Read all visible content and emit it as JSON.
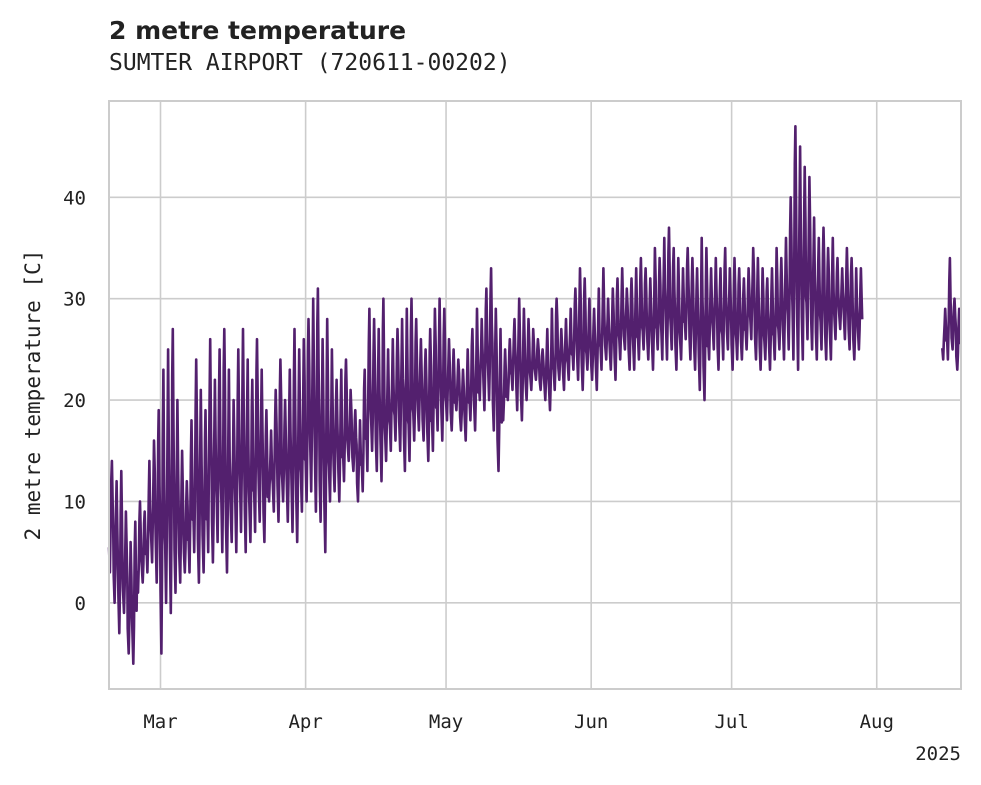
{
  "chart_data": {
    "type": "line",
    "title": "2 metre temperature",
    "subtitle": "SUMTER AIRPORT (720611-00202)",
    "ylabel": "2 metre temperature [C]",
    "xlabel": "",
    "x_tick_labels": [
      "Mar",
      "Apr",
      "May",
      "Jun",
      "Jul",
      "Aug"
    ],
    "x_year_label": "2025",
    "y_ticks": [
      0,
      10,
      20,
      30,
      40
    ],
    "xlim": [
      "2025-02-18",
      "2025-08-19"
    ],
    "ylim": [
      -8.5,
      49.5
    ],
    "grid": true,
    "legend": "none",
    "line_color": "#53206e",
    "series": [
      {
        "segments": [
          {
            "start": "2025-02-18",
            "end": "2025-07-27",
            "step_days": 1,
            "tmin": [
              3,
              0,
              -3,
              -1,
              -5,
              -6,
              1,
              2,
              3,
              4,
              2,
              -5,
              0,
              -1,
              1,
              2,
              3,
              3,
              5,
              2,
              3,
              5,
              4,
              6,
              5,
              3,
              6,
              5,
              7,
              5,
              6,
              7,
              8,
              6,
              10,
              9,
              8,
              10,
              8,
              7,
              6,
              9,
              10,
              11,
              9,
              8,
              5,
              10,
              11,
              10,
              12,
              14,
              13,
              10,
              11,
              13,
              15,
              13,
              12,
              14,
              15,
              16,
              15,
              13,
              14,
              16,
              17,
              16,
              14,
              15,
              17,
              16,
              18,
              17,
              19,
              17,
              16,
              18,
              17,
              20,
              19,
              20,
              17,
              13,
              18,
              20,
              21,
              19,
              18,
              20,
              21,
              22,
              21,
              20,
              19,
              21,
              22,
              21,
              22,
              23,
              22,
              21,
              23,
              22,
              21,
              23,
              24,
              23,
              22,
              24,
              25,
              23,
              23,
              24,
              25,
              24,
              23,
              25,
              24,
              24,
              25,
              23,
              24,
              26,
              24,
              23,
              21,
              20,
              24,
              25,
              23,
              24,
              25,
              23,
              24,
              24,
              25,
              26,
              24,
              23,
              24,
              23,
              24,
              25,
              24,
              25,
              24,
              23,
              24,
              26,
              25,
              24,
              25,
              24,
              24,
              26,
              27,
              26,
              25,
              24,
              25
            ],
            "tmax": [
              14,
              12,
              13,
              9,
              6,
              8,
              10,
              9,
              14,
              16,
              19,
              23,
              25,
              27,
              20,
              15,
              12,
              18,
              24,
              21,
              19,
              26,
              22,
              25,
              27,
              23,
              20,
              25,
              27,
              24,
              22,
              26,
              23,
              19,
              17,
              21,
              24,
              20,
              23,
              27,
              25,
              26,
              28,
              30,
              31,
              26,
              28,
              25,
              22,
              23,
              24,
              21,
              19,
              18,
              23,
              29,
              28,
              27,
              30,
              25,
              26,
              27,
              28,
              29,
              30,
              28,
              26,
              25,
              27,
              29,
              30,
              29,
              26,
              25,
              24,
              23,
              25,
              27,
              29,
              28,
              31,
              33,
              29,
              27,
              25,
              26,
              28,
              30,
              29,
              28,
              27,
              26,
              25,
              27,
              29,
              30,
              27,
              28,
              29,
              31,
              33,
              32,
              30,
              29,
              31,
              33,
              30,
              31,
              32,
              33,
              31,
              32,
              33,
              34,
              33,
              32,
              35,
              34,
              36,
              37,
              35,
              34,
              33,
              35,
              34,
              33,
              36,
              35,
              33,
              34,
              33,
              35,
              33,
              34,
              33,
              32,
              33,
              35,
              34,
              33,
              32,
              33,
              35,
              34,
              36,
              40,
              47,
              45,
              43,
              42,
              38,
              36,
              37,
              35,
              36,
              34,
              33,
              35,
              34,
              33,
              33
            ],
            "amplitude_hint": "daily min and max read from the plotted diurnal swings"
          },
          {
            "start": "2025-08-15",
            "end": "2025-08-18",
            "step_days": 1,
            "tmin": [
              24,
              24,
              25,
              23
            ],
            "tmax": [
              29,
              34,
              30,
              29
            ]
          }
        ]
      }
    ]
  }
}
